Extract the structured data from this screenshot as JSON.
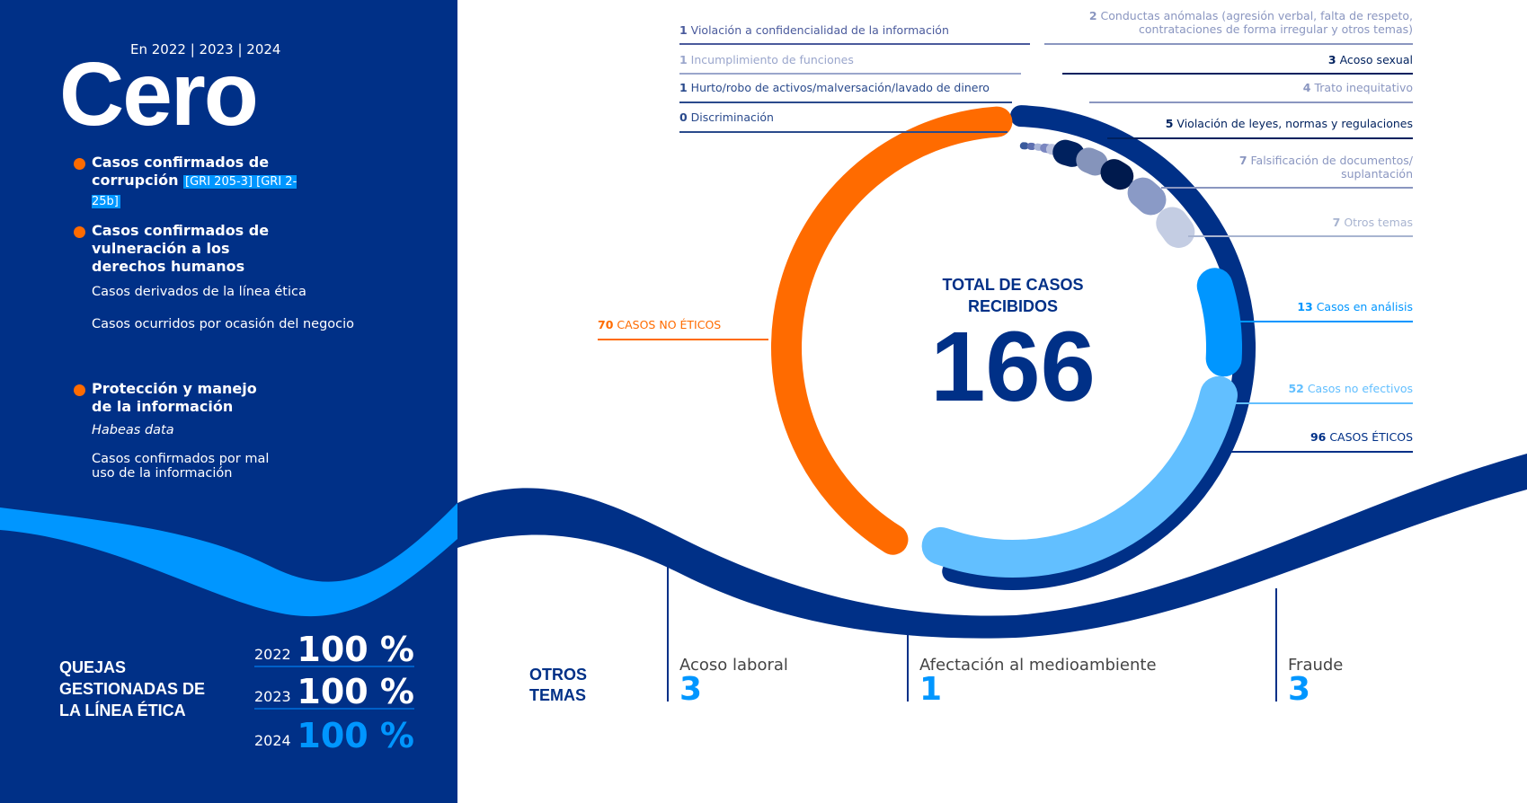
{
  "left": {
    "years": "En 2022 | 2023 | 2024",
    "title": "Cero",
    "items": [
      {
        "heading": "Casos confirmados de corrupción",
        "tag": "[GRI 205-3] [GRI 2-25b]"
      },
      {
        "heading": "Casos confirmados de vulneración a los derechos humanos",
        "subs": [
          "Casos derivados de la línea ética",
          "Casos ocurridos por ocasión del negocio"
        ]
      },
      {
        "heading": "Protección y manejo de la información",
        "subs": [
          "Habeas data",
          "Casos confirmados por mal uso de la información"
        ]
      }
    ],
    "quejas": {
      "title": "QUEJAS GESTIONADAS DE LA LÍNEA ÉTICA",
      "rows": [
        {
          "year": "2022",
          "value": "100 %"
        },
        {
          "year": "2023",
          "value": "100 %"
        },
        {
          "year": "2024",
          "value": "100 %"
        }
      ]
    }
  },
  "chart_data": {
    "type": "donut",
    "title": "TOTAL DE CASOS RECIBIDOS",
    "total": "166",
    "groups": [
      {
        "n": "70",
        "label": "CASOS NO ÉTICOS",
        "value": 70,
        "color": "#ff6b00"
      },
      {
        "n": "96",
        "label": "CASOS ÉTICOS",
        "value": 96,
        "color": "#003087"
      }
    ],
    "segments": [
      {
        "n": "0",
        "label": "Discriminación",
        "value": 0,
        "color": "#3a5a9c"
      },
      {
        "n": "1",
        "label": "Hurto/robo de activos/malversación/lavado de dinero",
        "value": 1,
        "color": "#5d6fb0"
      },
      {
        "n": "1",
        "label": "Incumplimiento de funciones",
        "value": 1,
        "color": "#a8b4d8"
      },
      {
        "n": "1",
        "label": "Violación a confidencialidad de la información",
        "value": 1,
        "color": "#7a86c0"
      },
      {
        "n": "2",
        "label": "Conductas anómalas (agresión verbal, falta de respeto, contrataciones de forma irregular y otros temas)",
        "value": 2,
        "color": "#b9c0de"
      },
      {
        "n": "3",
        "label": "Acoso sexual",
        "value": 3,
        "color": "#00215e"
      },
      {
        "n": "4",
        "label": "Trato inequitativo",
        "value": 4,
        "color": "#8594bb"
      },
      {
        "n": "5",
        "label": "Violación de leyes, normas y regulaciones",
        "value": 5,
        "color": "#001a4d"
      },
      {
        "n": "7",
        "label": "Falsificación de documentos/ suplantación",
        "value": 7,
        "color": "#8a9ac6"
      },
      {
        "n": "7",
        "label": "Otros temas",
        "value": 7,
        "color": "#c4cde3"
      },
      {
        "n": "13",
        "label": "Casos en análisis",
        "value": 13,
        "color": "#0096ff"
      },
      {
        "n": "52",
        "label": "Casos no efectivos",
        "value": 52,
        "color": "#62bfff"
      }
    ]
  },
  "otros": {
    "title": "OTROS TEMAS",
    "items": [
      {
        "label": "Acoso laboral",
        "value": "3"
      },
      {
        "label": "Afectación al medioambiente",
        "value": "1"
      },
      {
        "label": "Fraude",
        "value": "3"
      }
    ]
  }
}
